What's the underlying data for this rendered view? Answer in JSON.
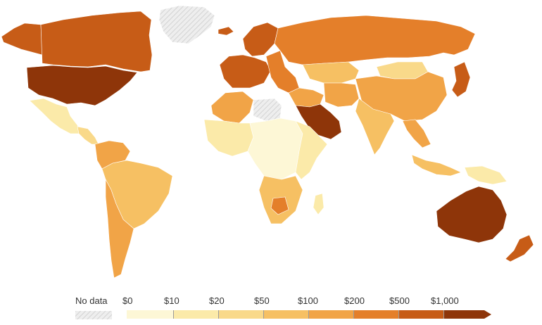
{
  "legend": {
    "no_data_label": "No data",
    "bins": [
      {
        "label": "$0",
        "color": "#fdf7d6"
      },
      {
        "label": "$10",
        "color": "#fbeaa9"
      },
      {
        "label": "$20",
        "color": "#f9d98a"
      },
      {
        "label": "$50",
        "color": "#f6c063"
      },
      {
        "label": "$100",
        "color": "#f1a447"
      },
      {
        "label": "$200",
        "color": "#e47f2a"
      },
      {
        "label": "$500",
        "color": "#c75c17"
      },
      {
        "label": "$1,000",
        "color": "#8e3509"
      }
    ]
  },
  "colors": {
    "no_data": "#eeeeee",
    "no_data_hatch": "#c8c8c8",
    "border": "#ffffff"
  },
  "regions": [
    {
      "id": "canada",
      "level": 6
    },
    {
      "id": "alaska",
      "level": 6
    },
    {
      "id": "greenland",
      "level": -1
    },
    {
      "id": "usa",
      "level": 7
    },
    {
      "id": "mexico",
      "level": 1
    },
    {
      "id": "central-america",
      "level": 2
    },
    {
      "id": "colombia-venezuela",
      "level": 4
    },
    {
      "id": "brazil",
      "level": 3
    },
    {
      "id": "argentina-chile",
      "level": 4
    },
    {
      "id": "iceland",
      "level": 6
    },
    {
      "id": "scandinavia",
      "level": 6
    },
    {
      "id": "western-europe",
      "level": 6
    },
    {
      "id": "eastern-europe",
      "level": 5
    },
    {
      "id": "russia",
      "level": 5
    },
    {
      "id": "kazakhstan",
      "level": 3
    },
    {
      "id": "mongolia",
      "level": 2
    },
    {
      "id": "china",
      "level": 4
    },
    {
      "id": "middle-east",
      "level": 4
    },
    {
      "id": "arabian-peninsula",
      "level": 7
    },
    {
      "id": "iran",
      "level": 4
    },
    {
      "id": "india",
      "level": 3
    },
    {
      "id": "southeast-asia",
      "level": 4
    },
    {
      "id": "japan",
      "level": 6
    },
    {
      "id": "north-africa",
      "level": 4
    },
    {
      "id": "libya",
      "level": -1
    },
    {
      "id": "west-africa",
      "level": 1
    },
    {
      "id": "central-africa",
      "level": 0
    },
    {
      "id": "east-africa",
      "level": 1
    },
    {
      "id": "southern-africa",
      "level": 3
    },
    {
      "id": "botswana",
      "level": 5
    },
    {
      "id": "madagascar",
      "level": 1
    },
    {
      "id": "indonesia",
      "level": 3
    },
    {
      "id": "papua",
      "level": 1
    },
    {
      "id": "australia",
      "level": 7
    },
    {
      "id": "new-zealand",
      "level": 6
    }
  ]
}
